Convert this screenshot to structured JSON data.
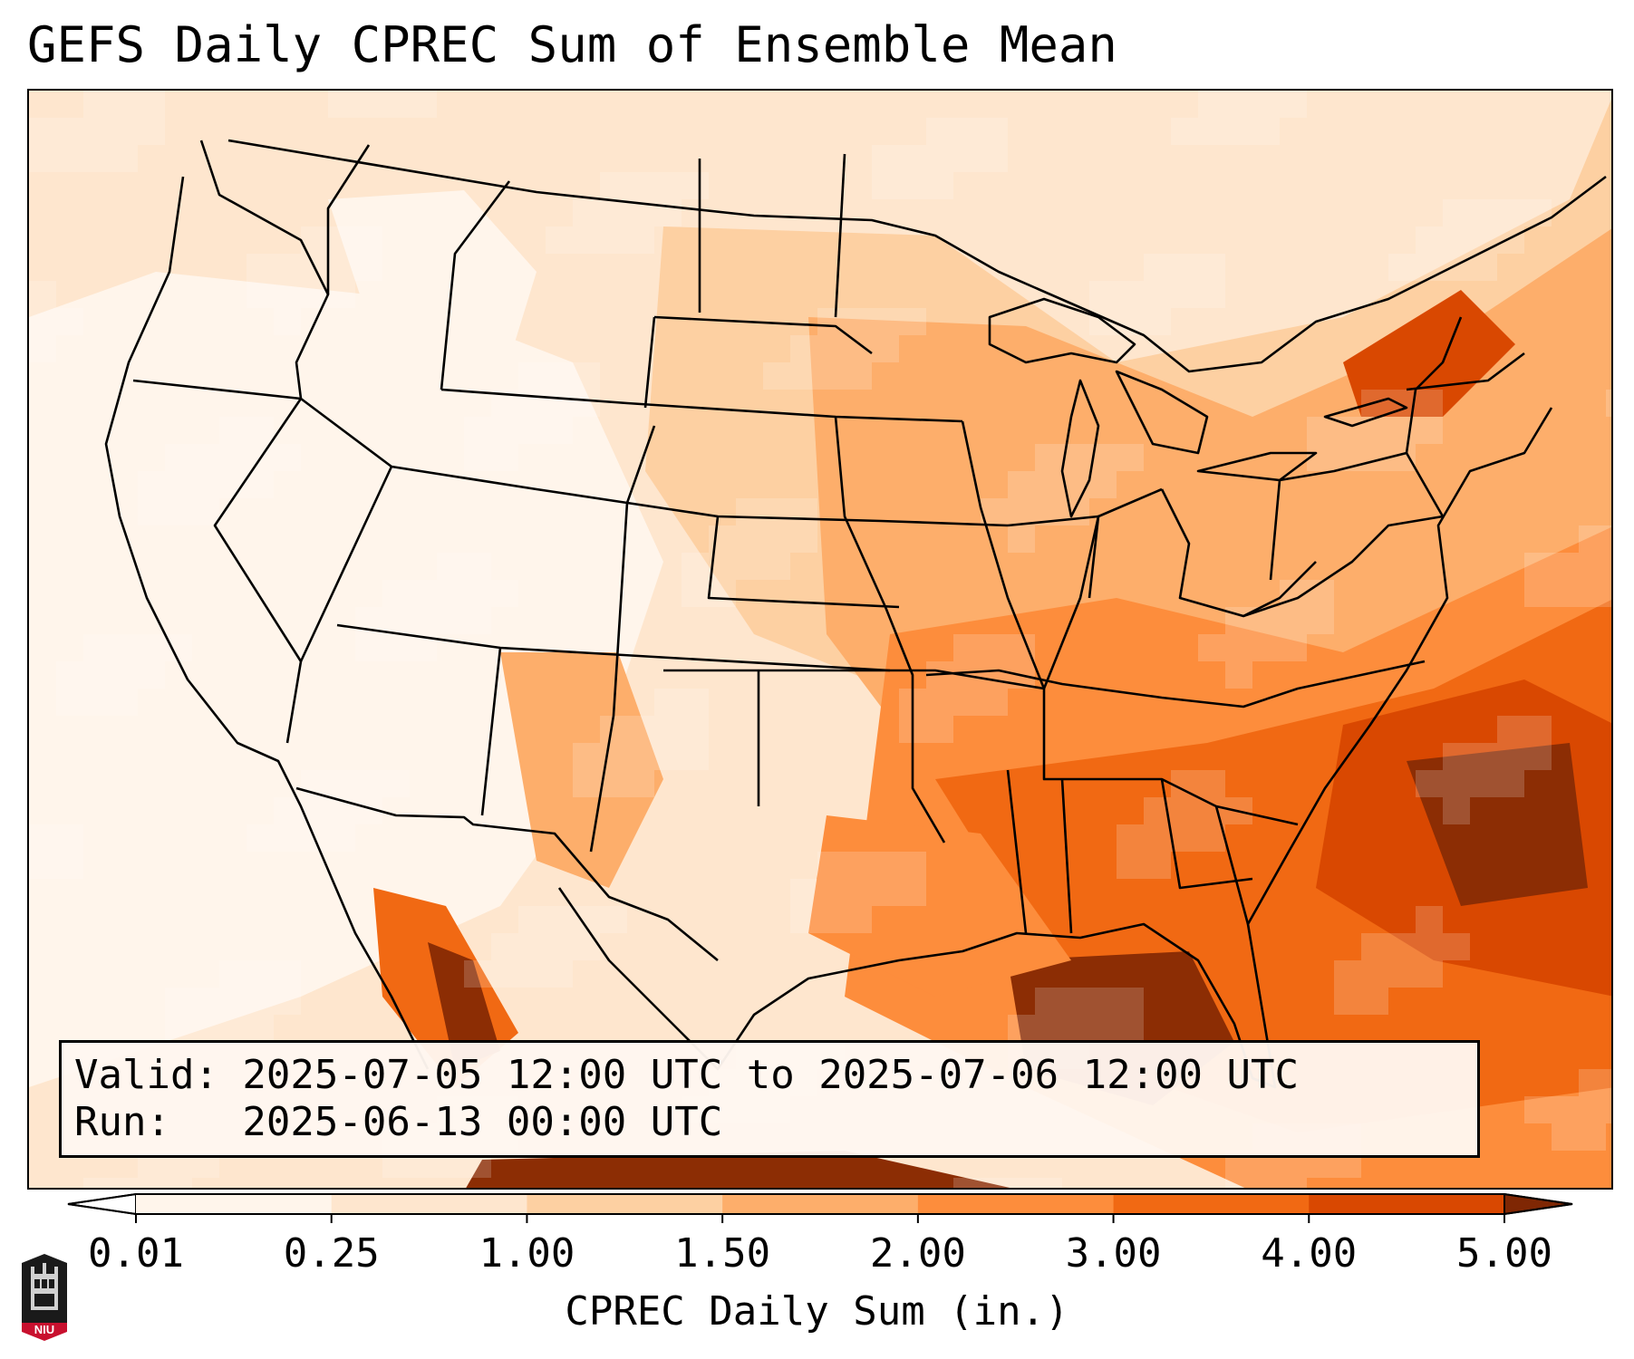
{
  "title": "GEFS Daily CPREC Sum of Ensemble Mean",
  "info": {
    "valid_line": "Valid: 2025-07-05 12:00 UTC to 2025-07-06 12:00 UTC",
    "run_line": "Run:   2025-06-13 00:00 UTC"
  },
  "colorbar": {
    "label": "CPREC Daily Sum (in.)",
    "ticks": [
      "0.01",
      "0.25",
      "1.00",
      "1.50",
      "2.00",
      "3.00",
      "4.00",
      "5.00"
    ],
    "colors": [
      "#fff5eb",
      "#fee6ce",
      "#fdd0a2",
      "#fdae6b",
      "#fd8d3c",
      "#f16913",
      "#d94801",
      "#8c2d04"
    ],
    "under_color": "#ffffff",
    "over_color": "#7f2704"
  },
  "logo": {
    "text": "NIU",
    "icon": "niu-castle-logo"
  }
}
